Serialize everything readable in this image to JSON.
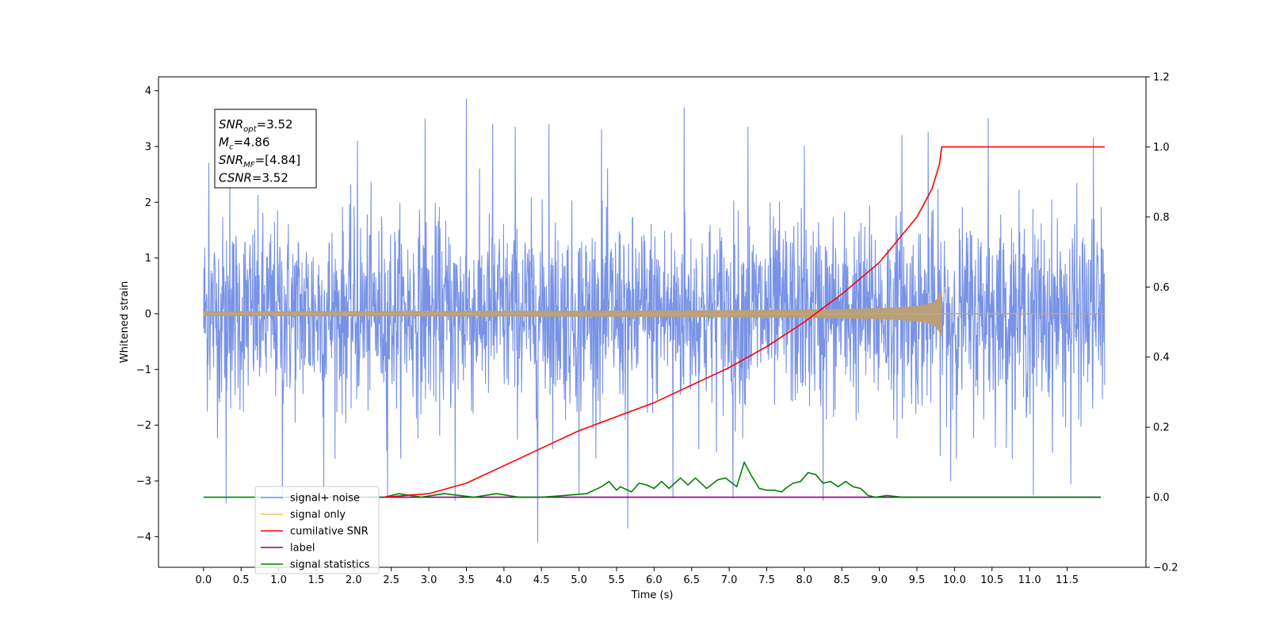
{
  "chart_data": {
    "type": "line",
    "xlabel": "Time (s)",
    "ylabel": "Whitened strain",
    "xlim": [
      -0.6,
      12.55
    ],
    "ylim": [
      -4.55,
      4.25
    ],
    "y2lim": [
      -0.2,
      1.2
    ],
    "x_ticks": [
      0.0,
      0.5,
      1.0,
      1.5,
      2.0,
      2.5,
      3.0,
      3.5,
      4.0,
      4.5,
      5.0,
      5.5,
      6.0,
      6.5,
      7.0,
      7.5,
      8.0,
      8.5,
      9.0,
      9.5,
      10.0,
      10.5,
      11.0,
      11.5
    ],
    "x_tick_labels": [
      "0.0",
      "0.5",
      "1.0",
      "1.5",
      "2.0",
      "2.5",
      "3.0",
      "3.5",
      "4.0",
      "4.5",
      "5.0",
      "5.5",
      "6.0",
      "6.5",
      "7.0",
      "7.5",
      "8.0",
      "8.5",
      "9.0",
      "9.5",
      "10.0",
      "10.5",
      "11.0",
      "11.5"
    ],
    "y_ticks": [
      4,
      3,
      2,
      1,
      0,
      -1,
      -2,
      -3,
      -4
    ],
    "y_tick_labels": [
      "4",
      "3",
      "2",
      "1",
      "0",
      "−1",
      "−2",
      "−3",
      "−4"
    ],
    "y2_ticks": [
      1.2,
      1.0,
      0.8,
      0.6,
      0.4,
      0.2,
      0.0,
      -0.2
    ],
    "y2_tick_labels": [
      "1.2",
      "1.0",
      "0.8",
      "0.6",
      "0.4",
      "0.2",
      "0.0",
      "−0.2"
    ],
    "grid": false,
    "legend_position": "lower-left",
    "stats_box": {
      "lines": [
        {
          "base": "SNR",
          "sub": "opt",
          "value": "=3.52"
        },
        {
          "base": "M",
          "sub": "c",
          "value": "=4.86"
        },
        {
          "base": "SNR",
          "sub": "MF",
          "value": "=[4.84]"
        },
        {
          "base": "CSNR",
          "sub": "",
          "value": "=3.52"
        }
      ]
    },
    "series": [
      {
        "name": "signal+ noise",
        "color": "#7893e6",
        "axis": "left",
        "kind": "noise",
        "x_range": [
          0.0,
          12.0
        ],
        "typical_range": [
          -2.5,
          2.5
        ],
        "spikes_up": [
          [
            0.07,
            2.7
          ],
          [
            0.35,
            2.6
          ],
          [
            1.6,
            3.0
          ],
          [
            2.05,
            3.1
          ],
          [
            2.95,
            3.5
          ],
          [
            3.5,
            3.85
          ],
          [
            3.85,
            3.4
          ],
          [
            4.15,
            3.35
          ],
          [
            4.6,
            3.4
          ],
          [
            5.3,
            3.3
          ],
          [
            6.4,
            3.7
          ],
          [
            7.25,
            3.35
          ],
          [
            8.0,
            3.0
          ],
          [
            9.3,
            3.2
          ],
          [
            9.65,
            3.25
          ],
          [
            10.45,
            3.5
          ],
          [
            11.85,
            3.15
          ]
        ],
        "spikes_down": [
          [
            0.3,
            -3.4
          ],
          [
            1.05,
            -3.35
          ],
          [
            1.6,
            -3.3
          ],
          [
            2.45,
            -3.3
          ],
          [
            3.35,
            -3.35
          ],
          [
            4.45,
            -4.1
          ],
          [
            5.0,
            -3.25
          ],
          [
            5.65,
            -3.85
          ],
          [
            6.25,
            -3.3
          ],
          [
            7.05,
            -3.3
          ],
          [
            8.25,
            -3.35
          ],
          [
            9.95,
            -3.0
          ],
          [
            11.05,
            -3.25
          ],
          [
            11.55,
            -3.05
          ]
        ]
      },
      {
        "name": "signal only",
        "color": "#ffc04d",
        "axis": "left",
        "kind": "chirp",
        "x_range": [
          0.0,
          12.0
        ],
        "merger_time": 9.83,
        "peak_amplitude": 0.4
      },
      {
        "name": "cumilative SNR",
        "color": "#ff0000",
        "axis": "right",
        "x": [
          2.4,
          3.0,
          3.5,
          4.0,
          4.5,
          5.0,
          5.5,
          6.0,
          6.5,
          7.0,
          7.5,
          8.0,
          8.5,
          9.0,
          9.5,
          9.7,
          9.8,
          9.83,
          12.0
        ],
        "values": [
          0.0,
          0.01,
          0.04,
          0.09,
          0.14,
          0.19,
          0.23,
          0.27,
          0.32,
          0.37,
          0.43,
          0.5,
          0.58,
          0.67,
          0.8,
          0.88,
          0.95,
          1.0,
          1.0
        ]
      },
      {
        "name": "label",
        "color": "#800080",
        "axis": "right",
        "x": [
          2.2,
          11.95
        ],
        "values": [
          0.0,
          0.0
        ]
      },
      {
        "name": "signal statistics",
        "color": "#008000",
        "axis": "right",
        "x": [
          0.0,
          2.4,
          2.6,
          2.9,
          3.2,
          3.6,
          3.9,
          4.2,
          4.5,
          4.8,
          5.1,
          5.3,
          5.4,
          5.5,
          5.55,
          5.7,
          5.8,
          5.9,
          6.0,
          6.1,
          6.2,
          6.35,
          6.45,
          6.55,
          6.7,
          6.85,
          6.95,
          7.1,
          7.2,
          7.3,
          7.4,
          7.5,
          7.6,
          7.7,
          7.75,
          7.85,
          7.95,
          8.05,
          8.15,
          8.25,
          8.35,
          8.45,
          8.55,
          8.65,
          8.75,
          8.85,
          8.95,
          9.1,
          9.3,
          9.5,
          11.95
        ],
        "values": [
          0.0,
          0.0,
          0.01,
          0.0,
          0.01,
          0.0,
          0.01,
          0.0,
          0.0,
          0.005,
          0.01,
          0.03,
          0.045,
          0.02,
          0.03,
          0.015,
          0.04,
          0.035,
          0.025,
          0.045,
          0.025,
          0.055,
          0.035,
          0.055,
          0.025,
          0.05,
          0.055,
          0.03,
          0.1,
          0.06,
          0.025,
          0.02,
          0.02,
          0.015,
          0.025,
          0.04,
          0.045,
          0.07,
          0.065,
          0.04,
          0.045,
          0.03,
          0.045,
          0.03,
          0.025,
          0.005,
          0.0,
          0.005,
          0.0,
          0.0,
          0.0
        ]
      }
    ],
    "legend_entries": [
      {
        "label": "signal+ noise",
        "color": "#7893e6"
      },
      {
        "label": "signal only",
        "color": "#ffc04d"
      },
      {
        "label": "cumilative SNR",
        "color": "#ff0000"
      },
      {
        "label": "label",
        "color": "#800080"
      },
      {
        "label": "signal statistics",
        "color": "#008000"
      }
    ]
  }
}
